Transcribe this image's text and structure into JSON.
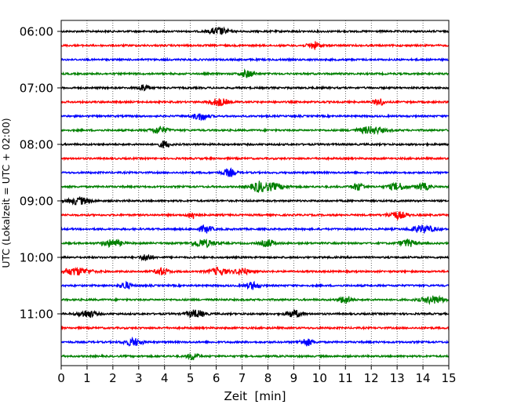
{
  "chart_data": {
    "type": "line",
    "title": "",
    "xlabel": "Zeit  [min]",
    "ylabel": "UTC (Lokalzeit = UTC + 02:00)",
    "xlim": [
      0,
      15
    ],
    "x_ticks": [
      "0",
      "1",
      "2",
      "3",
      "4",
      "5",
      "6",
      "7",
      "8",
      "9",
      "10",
      "11",
      "12",
      "13",
      "14",
      "15"
    ],
    "y_tick_labels": [
      "06:00",
      "07:00",
      "08:00",
      "09:00",
      "10:00",
      "11:00"
    ],
    "grid": "vertical dotted",
    "trace_interval_minutes": 15,
    "color_cycle": [
      "#000000",
      "#ff0000",
      "#0000ff",
      "#008000"
    ],
    "series": [
      {
        "time": "06:00",
        "color": "#000000",
        "bursts": [
          [
            6.1,
            0.6
          ]
        ]
      },
      {
        "time": "06:15",
        "color": "#ff0000",
        "bursts": [
          [
            9.8,
            0.4
          ]
        ]
      },
      {
        "time": "06:30",
        "color": "#0000ff",
        "bursts": []
      },
      {
        "time": "06:45",
        "color": "#008000",
        "bursts": [
          [
            7.2,
            0.4
          ]
        ]
      },
      {
        "time": "07:00",
        "color": "#000000",
        "bursts": [
          [
            3.2,
            0.3
          ]
        ]
      },
      {
        "time": "07:15",
        "color": "#ff0000",
        "bursts": [
          [
            6.1,
            0.6
          ],
          [
            12.3,
            0.3
          ]
        ]
      },
      {
        "time": "07:30",
        "color": "#0000ff",
        "bursts": [
          [
            5.4,
            0.5
          ]
        ]
      },
      {
        "time": "07:45",
        "color": "#008000",
        "bursts": [
          [
            3.8,
            0.5
          ],
          [
            12.0,
            0.9
          ]
        ]
      },
      {
        "time": "08:00",
        "color": "#000000",
        "bursts": [
          [
            4.0,
            0.3
          ]
        ]
      },
      {
        "time": "08:15",
        "color": "#ff0000",
        "bursts": []
      },
      {
        "time": "08:30",
        "color": "#0000ff",
        "bursts": [
          [
            6.5,
            0.4
          ]
        ]
      },
      {
        "time": "08:45",
        "color": "#008000",
        "bursts": [
          [
            7.6,
            0.4
          ],
          [
            8.1,
            1.0
          ],
          [
            11.5,
            0.4
          ],
          [
            13.0,
            0.6
          ],
          [
            14.0,
            0.4
          ]
        ]
      },
      {
        "time": "09:00",
        "color": "#000000",
        "bursts": [
          [
            0.7,
            0.7
          ]
        ]
      },
      {
        "time": "09:15",
        "color": "#ff0000",
        "bursts": [
          [
            5.1,
            0.3
          ],
          [
            13.0,
            0.6
          ]
        ]
      },
      {
        "time": "09:30",
        "color": "#0000ff",
        "bursts": [
          [
            5.6,
            0.4
          ],
          [
            14.0,
            0.8
          ]
        ]
      },
      {
        "time": "09:45",
        "color": "#008000",
        "bursts": [
          [
            2.0,
            0.6
          ],
          [
            5.5,
            0.8
          ],
          [
            8.0,
            0.4
          ],
          [
            13.4,
            0.5
          ]
        ]
      },
      {
        "time": "10:00",
        "color": "#000000",
        "bursts": [
          [
            3.3,
            0.3
          ]
        ]
      },
      {
        "time": "10:15",
        "color": "#ff0000",
        "bursts": [
          [
            0.6,
            1.0
          ],
          [
            3.9,
            0.4
          ],
          [
            6.1,
            0.6
          ],
          [
            7.0,
            0.4
          ]
        ]
      },
      {
        "time": "10:30",
        "color": "#0000ff",
        "bursts": [
          [
            2.5,
            0.3
          ],
          [
            7.4,
            0.4
          ]
        ]
      },
      {
        "time": "10:45",
        "color": "#008000",
        "bursts": [
          [
            11.0,
            0.4
          ],
          [
            14.4,
            0.8
          ]
        ]
      },
      {
        "time": "11:00",
        "color": "#000000",
        "bursts": [
          [
            1.0,
            0.6
          ],
          [
            5.2,
            0.6
          ],
          [
            9.0,
            0.5
          ]
        ]
      },
      {
        "time": "11:15",
        "color": "#ff0000",
        "bursts": []
      },
      {
        "time": "11:30",
        "color": "#0000ff",
        "bursts": [
          [
            2.8,
            0.6
          ],
          [
            9.5,
            0.4
          ]
        ]
      },
      {
        "time": "11:45",
        "color": "#008000",
        "bursts": [
          [
            5.1,
            0.3
          ]
        ]
      }
    ]
  }
}
